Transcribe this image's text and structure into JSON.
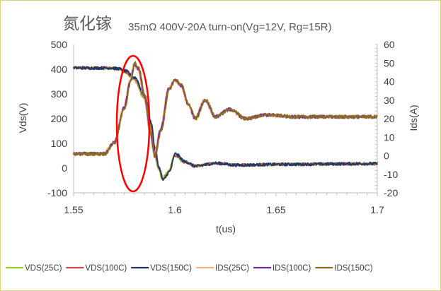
{
  "chart_data": {
    "type": "line",
    "title_cn": "氮化镓",
    "title": "35mΩ 400V-20A turn-on(Vg=12V, Rg=15R)",
    "xlabel": "t(us)",
    "ylabel": "Vds(V)",
    "y2label": "Ids(A)",
    "xlim": [
      1.55,
      1.7
    ],
    "ylim": [
      -100,
      500
    ],
    "y2lim": [
      -20,
      60
    ],
    "xticks": [
      "1.55",
      "1.6",
      "1.65",
      "1.7"
    ],
    "yticks": [
      "-100",
      "0",
      "100",
      "200",
      "300",
      "400",
      "500"
    ],
    "y2ticks": [
      "-20",
      "-10",
      "0",
      "10",
      "20",
      "30",
      "40",
      "50",
      "60"
    ],
    "grid": false,
    "legend_position": "bottom",
    "annotation": "red ellipse around the current overshoot peak at t≈1.58us",
    "series": [
      {
        "name": "VDS(25C)",
        "axis": "left",
        "color": "#9acd32",
        "x": [
          1.55,
          1.568,
          1.572,
          1.575,
          1.58,
          1.585,
          1.588,
          1.59,
          1.592,
          1.594,
          1.597,
          1.6,
          1.605,
          1.61,
          1.62,
          1.63,
          1.65,
          1.7
        ],
        "y": [
          405,
          405,
          402,
          392,
          360,
          285,
          180,
          70,
          0,
          -42,
          -15,
          50,
          25,
          8,
          20,
          12,
          15,
          18
        ]
      },
      {
        "name": "VDS(100C)",
        "axis": "left",
        "color": "#c0504d",
        "x": [
          1.55,
          1.568,
          1.572,
          1.575,
          1.58,
          1.585,
          1.588,
          1.59,
          1.592,
          1.594,
          1.597,
          1.6,
          1.605,
          1.61,
          1.62,
          1.63,
          1.65,
          1.7
        ],
        "y": [
          405,
          405,
          402,
          392,
          362,
          288,
          182,
          72,
          0,
          -44,
          -15,
          52,
          25,
          8,
          20,
          12,
          15,
          18
        ]
      },
      {
        "name": "VDS(150C)",
        "axis": "left",
        "color": "#1f3864",
        "x": [
          1.55,
          1.568,
          1.572,
          1.575,
          1.58,
          1.585,
          1.588,
          1.59,
          1.592,
          1.594,
          1.597,
          1.6,
          1.605,
          1.61,
          1.62,
          1.63,
          1.65,
          1.7
        ],
        "y": [
          405,
          405,
          402,
          394,
          366,
          292,
          186,
          76,
          0,
          -48,
          -15,
          58,
          25,
          8,
          20,
          12,
          15,
          18
        ]
      },
      {
        "name": "IDS(25C)",
        "axis": "right",
        "color": "#f4b183",
        "x": [
          1.55,
          1.565,
          1.57,
          1.575,
          1.578,
          1.58,
          1.582,
          1.585,
          1.588,
          1.59,
          1.593,
          1.597,
          1.6,
          1.603,
          1.607,
          1.61,
          1.615,
          1.62,
          1.627,
          1.635,
          1.645,
          1.66,
          1.7
        ],
        "y": [
          1,
          1,
          7,
          26,
          40,
          49,
          47,
          32,
          12,
          0,
          14,
          36,
          41,
          38,
          27,
          20,
          30,
          21,
          25,
          20,
          22,
          21,
          21
        ]
      },
      {
        "name": "IDS(100C)",
        "axis": "right",
        "color": "#7030a0",
        "x": [
          1.55,
          1.565,
          1.57,
          1.575,
          1.578,
          1.58,
          1.582,
          1.585,
          1.588,
          1.59,
          1.593,
          1.597,
          1.6,
          1.603,
          1.607,
          1.61,
          1.615,
          1.62,
          1.627,
          1.635,
          1.645,
          1.66,
          1.7
        ],
        "y": [
          1,
          1,
          7,
          26,
          40,
          49,
          47,
          32,
          12,
          0,
          14,
          36,
          41,
          38,
          27,
          20,
          30,
          21,
          25,
          20,
          22,
          21,
          21
        ]
      },
      {
        "name": "IDS(150C)",
        "axis": "right",
        "color": "#8c6d1f",
        "x": [
          1.55,
          1.565,
          1.57,
          1.575,
          1.578,
          1.58,
          1.582,
          1.585,
          1.588,
          1.59,
          1.593,
          1.597,
          1.6,
          1.603,
          1.607,
          1.61,
          1.615,
          1.62,
          1.627,
          1.635,
          1.645,
          1.66,
          1.7
        ],
        "y": [
          1,
          1,
          7,
          26,
          40,
          50,
          47,
          32,
          12,
          0,
          14,
          36,
          41,
          38,
          27,
          20,
          30,
          21,
          25,
          20,
          22,
          21,
          21
        ]
      }
    ]
  }
}
